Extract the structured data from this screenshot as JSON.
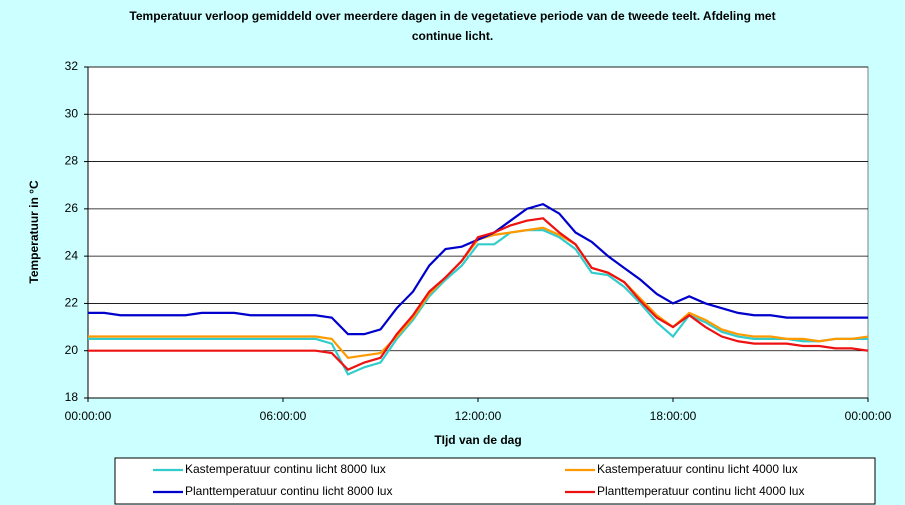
{
  "chart_data": {
    "type": "line",
    "title": "Temperatuur verloop gemiddeld over meerdere dagen in de vegetatieve periode van de tweede teelt.  Afdeling met continue licht.",
    "x_label": "TIjd van de dag",
    "y_label": "Temperatuur in °C",
    "x": [
      0,
      0.5,
      1,
      1.5,
      2,
      2.5,
      3,
      3.5,
      4,
      4.5,
      5,
      5.5,
      6,
      6.5,
      7,
      7.5,
      8,
      8.5,
      9,
      9.5,
      10,
      10.5,
      11,
      11.5,
      12,
      12.5,
      13,
      13.5,
      14,
      14.5,
      15,
      15.5,
      16,
      16.5,
      17,
      17.5,
      18,
      18.5,
      19,
      19.5,
      20,
      20.5,
      21,
      21.5,
      22,
      22.5,
      23,
      23.5,
      24
    ],
    "series": [
      {
        "name": "Kastemperatuur continu licht 8000 lux",
        "color": "#33cccc",
        "values": [
          20.5,
          20.5,
          20.5,
          20.5,
          20.5,
          20.5,
          20.5,
          20.5,
          20.5,
          20.5,
          20.5,
          20.5,
          20.5,
          20.5,
          20.5,
          20.3,
          19.0,
          19.3,
          19.5,
          20.5,
          21.3,
          22.3,
          23.0,
          23.6,
          24.5,
          24.5,
          25.0,
          25.1,
          25.1,
          24.8,
          24.3,
          23.3,
          23.2,
          22.7,
          22.0,
          21.2,
          20.6,
          21.5,
          21.2,
          20.8,
          20.6,
          20.5,
          20.5,
          20.5,
          20.4,
          20.4,
          20.5,
          20.5,
          20.5
        ]
      },
      {
        "name": "Kastemperatuur continu licht 4000 lux",
        "color": "#ff9900",
        "values": [
          20.6,
          20.6,
          20.6,
          20.6,
          20.6,
          20.6,
          20.6,
          20.6,
          20.6,
          20.6,
          20.6,
          20.6,
          20.6,
          20.6,
          20.6,
          20.5,
          19.7,
          19.8,
          19.9,
          20.6,
          21.4,
          22.4,
          23.1,
          23.8,
          24.7,
          24.9,
          25.0,
          25.1,
          25.2,
          24.9,
          24.5,
          23.5,
          23.3,
          22.9,
          22.2,
          21.5,
          21.0,
          21.6,
          21.3,
          20.9,
          20.7,
          20.6,
          20.6,
          20.5,
          20.5,
          20.4,
          20.5,
          20.5,
          20.6
        ]
      },
      {
        "name": "Planttemperatuur continu licht 8000 lux",
        "color": "#0000cc",
        "values": [
          21.6,
          21.6,
          21.5,
          21.5,
          21.5,
          21.5,
          21.5,
          21.6,
          21.6,
          21.6,
          21.5,
          21.5,
          21.5,
          21.5,
          21.5,
          21.4,
          20.7,
          20.7,
          20.9,
          21.8,
          22.5,
          23.6,
          24.3,
          24.4,
          24.7,
          25.0,
          25.5,
          26.0,
          26.2,
          25.8,
          25.0,
          24.6,
          24.0,
          23.5,
          23.0,
          22.4,
          22.0,
          22.3,
          22.0,
          21.8,
          21.6,
          21.5,
          21.5,
          21.4,
          21.4,
          21.4,
          21.4,
          21.4,
          21.4
        ]
      },
      {
        "name": "Planttemperatuur continu licht 4000 lux",
        "color": "#ee1111",
        "values": [
          20.0,
          20.0,
          20.0,
          20.0,
          20.0,
          20.0,
          20.0,
          20.0,
          20.0,
          20.0,
          20.0,
          20.0,
          20.0,
          20.0,
          20.0,
          19.9,
          19.2,
          19.5,
          19.7,
          20.7,
          21.5,
          22.5,
          23.1,
          23.8,
          24.8,
          25.0,
          25.3,
          25.5,
          25.6,
          25.0,
          24.5,
          23.5,
          23.3,
          22.9,
          22.1,
          21.4,
          21.0,
          21.5,
          21.0,
          20.6,
          20.4,
          20.3,
          20.3,
          20.3,
          20.2,
          20.2,
          20.1,
          20.1,
          20.0
        ]
      }
    ],
    "xlim": [
      0,
      24
    ],
    "xticks": [
      {
        "value": 0,
        "label": "00:00:00"
      },
      {
        "value": 6,
        "label": "06:00:00"
      },
      {
        "value": 12,
        "label": "12:00:00"
      },
      {
        "value": 18,
        "label": "18:00:00"
      },
      {
        "value": 24,
        "label": "00:00:00"
      }
    ],
    "ylim": [
      18,
      32
    ],
    "yticks": [
      18,
      20,
      22,
      24,
      26,
      28,
      30,
      32
    ],
    "grid": true,
    "legend": "bottom"
  }
}
